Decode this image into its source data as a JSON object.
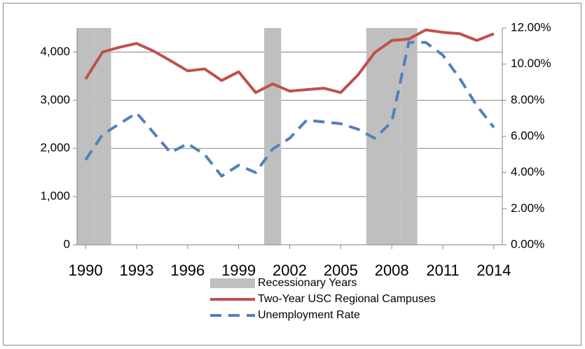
{
  "chart_data": {
    "type": "line",
    "x": [
      1990,
      1991,
      1992,
      1993,
      1994,
      1995,
      1996,
      1997,
      1998,
      1999,
      2000,
      2001,
      2002,
      2003,
      2004,
      2005,
      2006,
      2007,
      2008,
      2009,
      2010,
      2011,
      2012,
      2013,
      2014
    ],
    "xlim": [
      1989.5,
      2014.5
    ],
    "xticks": [
      1990,
      1993,
      1996,
      1999,
      2002,
      2005,
      2008,
      2011,
      2014
    ],
    "ylim": [
      0,
      4500
    ],
    "yticks": [
      0,
      {
        "value": 1000,
        "label": "1,000"
      },
      {
        "value": 2000,
        "label": "2,000"
      },
      {
        "value": 3000,
        "label": "3,000"
      },
      {
        "value": 4000,
        "label": "4,000"
      }
    ],
    "y2lim": [
      0,
      12
    ],
    "y2ticks": [
      {
        "value": 0,
        "label": "0.00%"
      },
      {
        "value": 2,
        "label": "2.00%"
      },
      {
        "value": 4,
        "label": "4.00%"
      },
      {
        "value": 6,
        "label": "6.00%"
      },
      {
        "value": 8,
        "label": "8.00%"
      },
      {
        "value": 10,
        "label": "10.00%"
      },
      {
        "value": 12,
        "label": "12.00%"
      }
    ],
    "grid": true,
    "legend": "bottom",
    "series": [
      {
        "name": "Recessionary Years",
        "type": "bar",
        "color": "#bfbfbf",
        "values": [
          4500,
          4500,
          null,
          null,
          null,
          null,
          null,
          null,
          null,
          null,
          null,
          4500,
          null,
          null,
          null,
          null,
          null,
          4500,
          4500,
          4500,
          null,
          null,
          null,
          null,
          null
        ]
      },
      {
        "name": "Two-Year USC Regional Campuses",
        "type": "line",
        "color": "#c0504d",
        "values": [
          3440,
          4000,
          4100,
          4180,
          4020,
          3820,
          3610,
          3650,
          3410,
          3590,
          3160,
          3340,
          3190,
          3220,
          3250,
          3160,
          3520,
          3990,
          4240,
          4270,
          4460,
          4410,
          4380,
          4240,
          4380
        ]
      },
      {
        "name": "Unemployment Rate",
        "type": "line",
        "dashed": true,
        "axis": "y2",
        "color": "#4f81bd",
        "values": [
          4.7,
          6.1,
          6.7,
          7.3,
          6.2,
          5.1,
          5.6,
          5.0,
          3.8,
          4.4,
          4.0,
          5.3,
          5.9,
          6.9,
          6.8,
          6.7,
          6.4,
          5.9,
          6.8,
          11.2,
          11.2,
          10.5,
          9.2,
          7.7,
          6.5
        ]
      }
    ]
  }
}
